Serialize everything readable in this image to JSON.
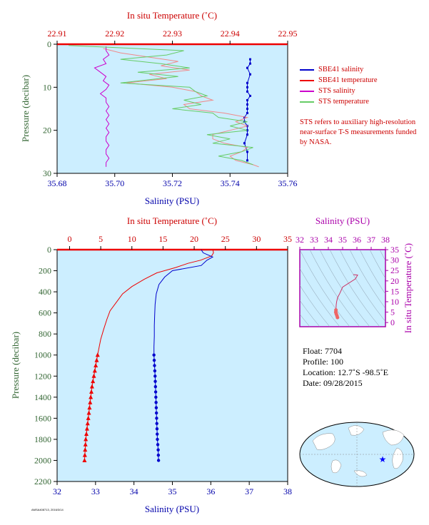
{
  "colors": {
    "plot_bg": "#cceeff",
    "salinity": "#0000cc",
    "temperature": "#ee0000",
    "sts_salinity": "#cc00cc",
    "sts_temperature": "#66cc66",
    "sbe_temp_light": "#f08a8a",
    "axis_pressure": "#336633",
    "axis_salinity": "#0000aa",
    "axis_temp": "#cc0000",
    "ts_axis": "#aa00aa"
  },
  "legend": {
    "items": [
      {
        "label": "SBE41 salinity",
        "color": "#0000cc"
      },
      {
        "label": "SBE41 temperature",
        "color": "#ee0000"
      },
      {
        "label": "STS salinity",
        "color": "#cc00cc"
      },
      {
        "label": "STS temperature",
        "color": "#66cc66"
      }
    ]
  },
  "note": "STS refers to auxiliary high-resolution near-surface T-S measurements funded by NASA.",
  "float_info": {
    "float": "Float:  7704",
    "profile": "Profile:  100",
    "location": "Location:  12.7˚S  -98.5˚E",
    "date": "Date:  09/28/2015"
  },
  "footer_code": "AMSA408713, 2016/3/14",
  "chart_data": [
    {
      "type": "line",
      "id": "near-surface",
      "top_xlabel": "In situ Temperature (˚C)",
      "xlabel": "Salinity (PSU)",
      "ylabel": "Pressure (decibar)",
      "temp_lim": [
        22.91,
        22.95
      ],
      "temp_ticks": [
        "22.91",
        "22.92",
        "22.93",
        "22.94",
        "22.95"
      ],
      "sal_lim": [
        35.68,
        35.76
      ],
      "sal_ticks": [
        "35.68",
        "35.70",
        "35.72",
        "35.74",
        "35.76"
      ],
      "ylim": [
        0,
        30
      ],
      "y_ticks": [
        "0",
        "10",
        "20",
        "30"
      ],
      "series": [
        {
          "name": "SBE41 salinity",
          "axis": "salinity",
          "x": [
            35.747,
            35.747,
            35.746,
            35.747,
            35.746,
            35.746,
            35.746,
            35.747,
            35.746,
            35.746,
            35.746,
            35.746,
            35.745,
            35.745,
            35.746,
            35.746,
            35.746,
            35.745,
            35.746,
            35.746
          ],
          "y": [
            3.5,
            4.5,
            5.5,
            7,
            9,
            10,
            11,
            12,
            13,
            14,
            15,
            16,
            17,
            18,
            19,
            20,
            21,
            23,
            25,
            27
          ]
        },
        {
          "name": "SBE41 temperature",
          "axis": "temperature",
          "x": [
            22.918,
            22.921,
            22.926,
            22.931,
            22.928,
            22.933,
            22.926,
            22.929,
            22.922,
            22.93,
            22.934,
            22.935,
            22.937,
            22.932,
            22.933,
            22.939,
            22.943,
            22.941,
            22.943,
            22.94,
            22.937,
            22.937,
            22.939,
            22.943,
            22.942,
            22.94,
            22.941,
            22.944,
            22.945
          ],
          "y": [
            1,
            2,
            3,
            4,
            5,
            6,
            7,
            8,
            9,
            10,
            11,
            12,
            13,
            14,
            15,
            16,
            17,
            18,
            19,
            20,
            21,
            22,
            23,
            24,
            25,
            26,
            27,
            28,
            28.5
          ]
        },
        {
          "name": "STS salinity",
          "axis": "salinity",
          "x": [
            35.697,
            35.697,
            35.698,
            35.696,
            35.697,
            35.693,
            35.695,
            35.697,
            35.696,
            35.698,
            35.697,
            35.695,
            35.697,
            35.697,
            35.698,
            35.697,
            35.698,
            35.697,
            35.698,
            35.697,
            35.698,
            35.697,
            35.697,
            35.698,
            35.697,
            35.697,
            35.698,
            35.697,
            35.697
          ],
          "y": [
            0.5,
            1.5,
            2.5,
            3.5,
            4.5,
            5.5,
            6.5,
            7.5,
            8.5,
            9.5,
            10.5,
            11.5,
            12.5,
            13.5,
            14.5,
            15.5,
            16.5,
            17.5,
            18.5,
            19.5,
            20.5,
            21.5,
            22.5,
            23.5,
            24.5,
            25.5,
            26.5,
            27.5,
            28.5
          ]
        },
        {
          "name": "STS temperature",
          "axis": "temperature",
          "x": [
            22.912,
            22.932,
            22.929,
            22.921,
            22.928,
            22.933,
            22.924,
            22.931,
            22.921,
            22.933,
            22.934,
            22.936,
            22.932,
            22.935,
            22.93,
            22.937,
            22.938,
            22.943,
            22.94,
            22.943,
            22.936,
            22.94,
            22.937,
            22.944,
            22.942,
            22.938,
            22.942,
            22.944
          ],
          "y": [
            0.3,
            1.5,
            2.5,
            3.5,
            4.5,
            5.5,
            6.5,
            7.5,
            9,
            10,
            11,
            12,
            13,
            14,
            15,
            16,
            17,
            18,
            19,
            20,
            21,
            22,
            23,
            24,
            25,
            26,
            27,
            28
          ]
        }
      ]
    },
    {
      "type": "line",
      "id": "full-profile",
      "top_xlabel": "In situ Temperature (˚C)",
      "xlabel": "Salinity (PSU)",
      "ylabel": "Pressure (decibar)",
      "temp_lim": [
        -2,
        35
      ],
      "temp_ticks": [
        "0",
        "5",
        "10",
        "15",
        "20",
        "25",
        "30",
        "35"
      ],
      "sal_lim": [
        32,
        38
      ],
      "sal_ticks": [
        "32",
        "33",
        "34",
        "35",
        "36",
        "37",
        "38"
      ],
      "ylim": [
        0,
        2200
      ],
      "y_ticks": [
        "0",
        "200",
        "400",
        "600",
        "800",
        "1000",
        "1200",
        "1400",
        "1600",
        "1800",
        "2000",
        "2200"
      ],
      "series": [
        {
          "name": "temperature",
          "axis": "temperature",
          "x": [
            23.0,
            23.1,
            22.8,
            21.0,
            19.0,
            17.0,
            14.0,
            12.0,
            10.0,
            8.5,
            7.5,
            6.5,
            6.0,
            5.5,
            5.0,
            4.5,
            4.2,
            3.9,
            3.6,
            3.4,
            3.2,
            3.0,
            2.8,
            2.6,
            2.4
          ],
          "y": [
            0,
            30,
            60,
            100,
            130,
            170,
            220,
            280,
            350,
            420,
            500,
            580,
            660,
            750,
            850,
            1000,
            1100,
            1200,
            1300,
            1400,
            1500,
            1600,
            1700,
            1800,
            2000
          ]
        },
        {
          "name": "salinity",
          "axis": "salinity",
          "x": [
            35.75,
            35.8,
            36.05,
            35.9,
            35.75,
            35.0,
            34.8,
            34.65,
            34.58,
            34.55,
            34.54,
            34.53,
            34.53,
            34.52,
            34.52,
            34.55,
            34.57,
            34.59,
            34.61,
            34.63,
            34.64
          ],
          "y": [
            0,
            30,
            70,
            100,
            150,
            200,
            260,
            330,
            420,
            520,
            620,
            720,
            820,
            920,
            1000,
            1200,
            1400,
            1600,
            1800,
            1900,
            2000
          ]
        }
      ],
      "temp_markers_start": 1000,
      "marker_step": 50
    },
    {
      "type": "scatter",
      "id": "ts-diagram",
      "top_xlabel": "Salinity (PSU)",
      "right_ylabel": "In situ Temperature (˚C)",
      "sal_lim": [
        32,
        38
      ],
      "sal_ticks": [
        "32",
        "33",
        "34",
        "35",
        "36",
        "37",
        "38"
      ],
      "temp_lim": [
        -2,
        35
      ],
      "temp_ticks": [
        "0",
        "5",
        "10",
        "15",
        "20",
        "25",
        "30",
        "35"
      ],
      "series": [
        {
          "name": "ts-profile",
          "x": [
            35.75,
            36.05,
            35.9,
            35.0,
            34.8,
            34.65,
            34.58,
            34.55,
            34.54,
            34.53,
            34.52,
            34.55,
            34.6,
            34.64
          ],
          "y": [
            23.0,
            22.8,
            21.0,
            17.0,
            14.0,
            12.0,
            10.0,
            8.5,
            7.0,
            6.0,
            5.0,
            4.2,
            3.3,
            2.4
          ]
        }
      ]
    }
  ],
  "map": {
    "marker_symbol": "star"
  }
}
